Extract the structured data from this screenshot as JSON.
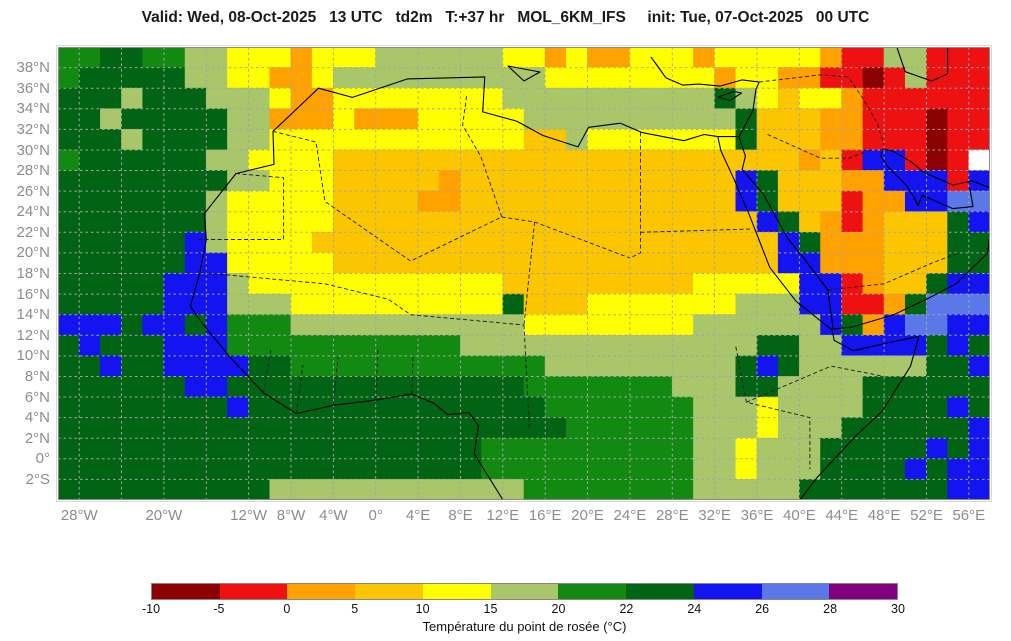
{
  "title": "Valid: Wed, 08-Oct-2025   13 UTC   td2m   T:+37 hr   MOL_6KM_IFS     init: Tue, 07-Oct-2025   00 UTC",
  "map": {
    "lat_ticks": [
      {
        "label": "38°N",
        "value": 38
      },
      {
        "label": "36°N",
        "value": 36
      },
      {
        "label": "34°N",
        "value": 34
      },
      {
        "label": "32°N",
        "value": 32
      },
      {
        "label": "30°N",
        "value": 30
      },
      {
        "label": "28°N",
        "value": 28
      },
      {
        "label": "26°N",
        "value": 26
      },
      {
        "label": "24°N",
        "value": 24
      },
      {
        "label": "22°N",
        "value": 22
      },
      {
        "label": "20°N",
        "value": 20
      },
      {
        "label": "18°N",
        "value": 18
      },
      {
        "label": "16°N",
        "value": 16
      },
      {
        "label": "14°N",
        "value": 14
      },
      {
        "label": "12°N",
        "value": 12
      },
      {
        "label": "10°N",
        "value": 10
      },
      {
        "label": "8°N",
        "value": 8
      },
      {
        "label": "6°N",
        "value": 6
      },
      {
        "label": "4°N",
        "value": 4
      },
      {
        "label": "2°N",
        "value": 2
      },
      {
        "label": "0°",
        "value": 0
      },
      {
        "label": "2°S",
        "value": -2
      }
    ],
    "lon_ticks": [
      {
        "label": "28°W",
        "value": -28
      },
      {
        "label": "20°W",
        "value": -20
      },
      {
        "label": "12°W",
        "value": -12
      },
      {
        "label": "8°W",
        "value": -8
      },
      {
        "label": "4°W",
        "value": -4
      },
      {
        "label": "0°",
        "value": 0
      },
      {
        "label": "4°E",
        "value": 4
      },
      {
        "label": "8°E",
        "value": 8
      },
      {
        "label": "12°E",
        "value": 12
      },
      {
        "label": "16°E",
        "value": 16
      },
      {
        "label": "20°E",
        "value": 20
      },
      {
        "label": "24°E",
        "value": 24
      },
      {
        "label": "28°E",
        "value": 28
      },
      {
        "label": "32°E",
        "value": 32
      },
      {
        "label": "36°E",
        "value": 36
      },
      {
        "label": "40°E",
        "value": 40
      },
      {
        "label": "44°E",
        "value": 44
      },
      {
        "label": "48°E",
        "value": 48
      },
      {
        "label": "52°E",
        "value": 52
      },
      {
        "label": "56°E",
        "value": 56
      }
    ],
    "gridline_lon_step": 4,
    "gridline_lat_step": 2
  },
  "legend": {
    "caption": "Température du point de rosée (°C)",
    "tick_labels": [
      "-10",
      "-5",
      "0",
      "5",
      "10",
      "15",
      "20",
      "22",
      "24",
      "26",
      "28",
      "30"
    ],
    "colors": [
      "#8B0000",
      "#EE1111",
      "#FFA200",
      "#FBC500",
      "#FFFF00",
      "#A9C66B",
      "#128A12",
      "#006414",
      "#1414F0",
      "#5A78E8",
      "#800080"
    ]
  },
  "chart_data": {
    "type": "heatmap",
    "title": "2 m dew point temperature (td2m), MOL_6KM_IFS forecast T:+37 hr",
    "units": "°C",
    "levels": [
      -10,
      -5,
      0,
      5,
      10,
      15,
      20,
      22,
      24,
      26,
      28,
      30
    ],
    "lon_range": [
      -30,
      58
    ],
    "lat_range": [
      -4,
      40
    ],
    "legend_position": "bottom",
    "grid_on": true,
    "palette": {
      "K": "#8B0000",
      "R": "#EE1111",
      "O": "#FFA200",
      "G": "#FBC500",
      "Y": "#FFFF00",
      "L": "#A9C66B",
      "M": "#128A12",
      "D": "#006414",
      "B": "#1414F0",
      "C": "#5A78E8",
      "P": "#800080"
    },
    "grid_rows": [
      "MMDDMMLLYYYOYYYLLLLLLYYOYOOYYYOYYYYYORRLLRRR",
      "MDDDDDLLYYOOYLLLLLLLLLLYYYYYYYYOYYOORRKRLRRR",
      "DDDLDDDLLLYOOYYYYYYYYLLLLLLLLLLDLYGYYORRRRRR",
      "DDLDDDDDLLOOOYOOOYYYYYLLLLLLLLLLDGGGOORRRKRR",
      "DDDLDDDDLLYYYYYYYYYYYYGGLYYYYYYYDGGGOORRRKRR",
      "MDDDDDDLLYYYYGGGGGGGGGGGGGGGGGGGGGGOGRBBRKR",
      "DDDDDDDDLLYYYGGGGGOGGGGGGGGGGGGGBDGGGOOBBBRB",
      "DDDDDDDLYYYYYGGGGOOGGGGGGGGGGGGGBDGGGROOBBCC",
      "DDDDDDDLYYYYYGGGGGGGGGGGGGGGGGGGGBDGOROGGGDB",
      "DDDDDDBLYYYYGGGGGGGGGGGGGGGGGGGGGGBDOOOGGGDD",
      "DDDDDDBBYYYYYGGGGGGGGGGGGGGGGGGGGGBBOOOGGGDD",
      "DDDDDBBBLYYYYYYYYYYYYGGGGGGGGGYYYYYBBROGGDBB",
      "DDDDDBBBLLLYYYYYYYYYYDGGGYYYYYYYLLLBBRRODCCC",
      "BBBDBBDBMMMLLLLLLLLLLLYYYYYYYYLLLLLLBDOBCCBB",
      "DBDDDBBBMMMMMMMMMMMLLLLLLLLLLLLLLDDLLBBBBDBD",
      "DDBDDBBBBDDMMMMMMMMMMMMLLLLLLLLLDBDLLLLLLDDB",
      "DDDDDDBBDDDDDDDDDDDDDDMMMMMMMLLLDDLLLLDDDDDD",
      "DDDDDDDDBDDDDDDDDDDDDDDMMMMMMMLLLYLLLLDDDDBD",
      "DDDDDDDDDDDDDDDDDDDDDDDDMMMMMMLLLYLLLDDDDDDB",
      "DDDDDDDDDDDDDDDDDDDDMMMMMMMMMMLLYLLLDDDDDBDB",
      "DDDDDDDDDDDDDDDDDDDDMMMMMMMMMMLLYLLLDDDDBDBB",
      "DDDDDDDDDDLLLLLLLLLLLLMMMMMMMMLLLLLDDDDDDDBB"
    ],
    "coastlines": [
      "M260.5,41.2 L215,84.4 L216,117.4 L177.9,126.6 L146.2,166.8 L148.3,192.5 L141.9,225.5 L132.4,259.4 L144,275.9 L172.6,310.9 L205.5,345.9 L238.3,366.5 L275.4,358.3 L317.7,353.1 L353.7,347 L376,356.3 L389.8,367.6 L411,365.5 L420.5,378.9 L416.2,406.7 L445,453",
      "M260.5,41.2 L294.4,50.4 L349.5,31.9 L426.8,29.9 L424.7,64.9 L458.6,74.1 L485,88.5 L520,99.9 L530.6,80.3 L562.4,76.2 L583.6,85.4 L625.9,93.7 L646.1,87.5 L659.8,89.6 L681,89.6 L694.8,63.8 L698,42.2 L701.2,35 L684.2,32.9 L662,39.1 L640.8,37.1 L624.9,38.1 L608,30.9 L598.4,17.5 L593.1,10.3",
      "M663,104 L676.7,133.8 L690.5,165.8 L711.7,220.3 L738.1,254.3 L774.1,283.1 L776.2,293.4 L795.3,303.7 L831.3,295.5 L860.9,289.3 L852.5,319.2 L823.9,364.5 L796.4,390.2 L758.3,431.4 L742,453",
      "M687.4,109.1 L684.2,122.5 L705.4,147.2 L729.7,191.5 L745.6,211 L769.9,243 L775.2,282.1 L794.3,280 L835.6,267.7 L870.5,251.2 L898,236.8 L929.8,205.9 L932,186",
      "M911.8,141.1 L915,159.6 L894.9,161.6 L864.2,148.3 L860,158.6 L855.6,149.3 L848.2,138 L830.3,120.4 L822.9,109.1 L825,101.9 L834.5,104",
      "M834.5,104 L852.5,114.3 L866.3,125.6 L894.9,138 L914,133.8 L932,141",
      "M838.8,0 L847.2,24.7 L873.7,34 L889.6,26.8 L889.6,0",
      "M659.8,89.6 L663,104 M681,89.6 L687.4,109.1",
      "M660,50 L676,44.5 L683.5,46 L672,53.5 L660,50",
      "M450,19 L481.9,25 L466,34 L450,19"
    ],
    "borders": [
      "M215,84.4 L258,95 L266.9,154.4 L330.4,198.7 L352.7,214.1 L443.8,169.9 L422.6,109.1 L404.6,78.2 L408.8,47.4",
      "M177.9,126.6 L225.6,130.7 L225.6,192.5 L137.7,192.5",
      "M582.5,85.4 L582.5,205.9 L571.9,211 M582.5,185.3 L693.7,182",
      "M443.8,169.9 L476.6,175 L571.9,211 M476.6,175 L466,278",
      "M141.9,225.5 L266.9,236.8 L330.4,252.3 L352.7,267.7 L466,278",
      "M466,278 L471.3,381",
      "M677.8,299.6 L688.4,355.2 L751.9,370.6 L751.9,422.1 M688.4,355.2 L773.1,319.1 L826,329.4",
      "M769.9,243 L826,236.8 L873.7,216.2 L900.2,205.9",
      "M709.6,87.5 L762.6,111.2 L791.2,111.2 L814.4,101.9",
      "M701.2,35 L762.6,27.8 L790.1,29.9 L805,51.5 L819.7,77.2 L826,97.8",
      "M205.5,345.9 L213,302 M238.3,366.5 L245,318 M275.4,358.3 L280,310 M317.7,353.1 L320,300 M353.7,347 L355,308"
    ]
  }
}
